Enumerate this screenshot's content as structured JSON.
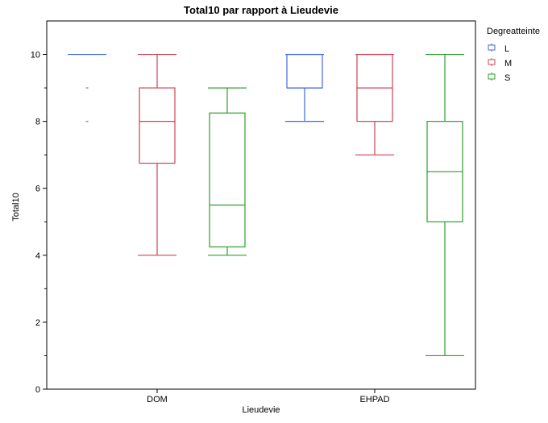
{
  "chart_data": {
    "type": "boxplot",
    "title": "Total10 par rapport à Lieudevie",
    "xlabel": "Lieudevie",
    "ylabel": "Total10",
    "categories": [
      "DOM",
      "EHPAD"
    ],
    "ylim": [
      0,
      11
    ],
    "yticks": [
      0,
      2,
      4,
      6,
      8,
      10
    ],
    "grid": false,
    "legend": {
      "title": "Degreatteinte",
      "position": "right",
      "entries": [
        "L",
        "M",
        "S"
      ]
    },
    "series": [
      {
        "name": "L",
        "color": "#4169e1",
        "boxes": [
          {
            "category": "DOM",
            "min": 10,
            "q1": 10,
            "median": 10,
            "q3": 10,
            "max": 10,
            "outliers": [
              9,
              8
            ]
          },
          {
            "category": "EHPAD",
            "min": 8,
            "q1": 9,
            "median": 9,
            "q3": 10,
            "max": 10,
            "outliers": []
          }
        ]
      },
      {
        "name": "M",
        "color": "#cc4455",
        "boxes": [
          {
            "category": "DOM",
            "min": 4,
            "q1": 6.75,
            "median": 8,
            "q3": 9,
            "max": 10,
            "outliers": []
          },
          {
            "category": "EHPAD",
            "min": 7,
            "q1": 8,
            "median": 9,
            "q3": 10,
            "max": 10,
            "outliers": []
          }
        ]
      },
      {
        "name": "S",
        "color": "#2ca02c",
        "boxes": [
          {
            "category": "DOM",
            "min": 4,
            "q1": 4.25,
            "median": 5.5,
            "q3": 8.25,
            "max": 9,
            "outliers": []
          },
          {
            "category": "EHPAD",
            "min": 1,
            "q1": 5,
            "median": 6.5,
            "q3": 8,
            "max": 10,
            "outliers": []
          }
        ]
      }
    ]
  }
}
